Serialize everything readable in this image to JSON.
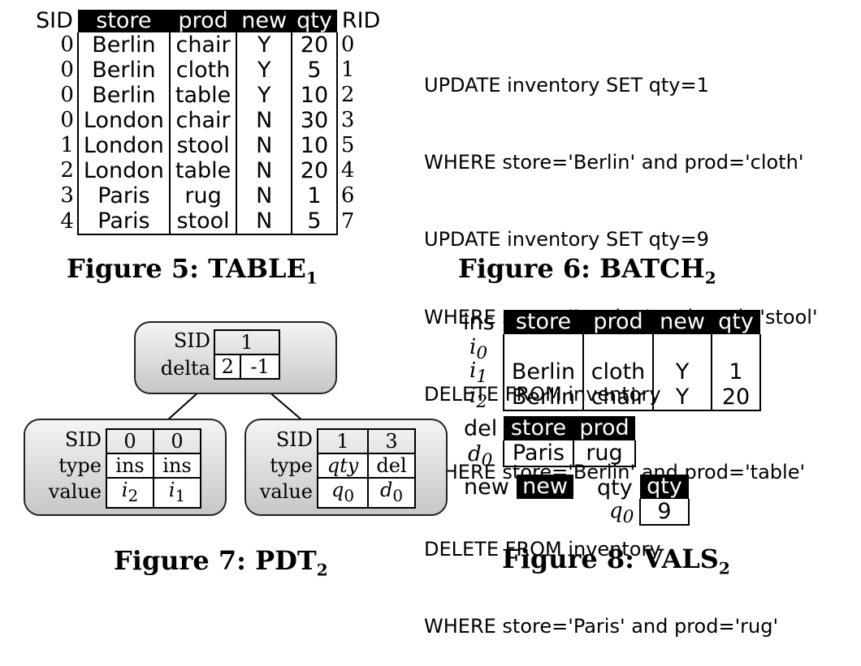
{
  "fig5": {
    "left_header": "SID",
    "right_header": "RID",
    "columns": [
      "store",
      "prod",
      "new",
      "qty"
    ],
    "rows": [
      {
        "sid": "0",
        "store": "Berlin",
        "prod": "chair",
        "new": "Y",
        "qty": "20",
        "rid": "0"
      },
      {
        "sid": "0",
        "store": "Berlin",
        "prod": "cloth",
        "new": "Y",
        "qty": "5",
        "rid": "1"
      },
      {
        "sid": "0",
        "store": "Berlin",
        "prod": "table",
        "new": "Y",
        "qty": "10",
        "rid": "2"
      },
      {
        "sid": "0",
        "store": "London",
        "prod": "chair",
        "new": "N",
        "qty": "30",
        "rid": "3"
      },
      {
        "sid": "1",
        "store": "London",
        "prod": "stool",
        "new": "N",
        "qty": "10",
        "rid": "5"
      },
      {
        "sid": "2",
        "store": "London",
        "prod": "table",
        "new": "N",
        "qty": "20",
        "rid": "4"
      },
      {
        "sid": "3",
        "store": "Paris",
        "prod": "rug",
        "new": "N",
        "qty": "1",
        "rid": "6"
      },
      {
        "sid": "4",
        "store": "Paris",
        "prod": "stool",
        "new": "N",
        "qty": "5",
        "rid": "7"
      }
    ],
    "caption": "Figure 5: TABLE",
    "caption_sub": "1"
  },
  "fig6": {
    "lines": [
      "UPDATE inventory SET qty=1",
      "WHERE store='Berlin' and prod='cloth'",
      "UPDATE inventory SET qty=9",
      "WHERE store='London' and prod='stool'",
      "DELETE FROM inventory",
      "WHERE store='Berlin' and prod='table'",
      "DELETE FROM inventory",
      "WHERE store='Paris' and prod='rug'"
    ],
    "caption": "Figure 6: BATCH",
    "caption_sub": "2"
  },
  "fig7": {
    "root": {
      "sid_label": "SID",
      "delta_label": "delta",
      "sid": "1",
      "delta": [
        "2",
        "-1"
      ]
    },
    "left": {
      "sid_label": "SID",
      "type_label": "type",
      "value_label": "value",
      "sid": [
        "0",
        "0"
      ],
      "type": [
        "ins",
        "ins"
      ],
      "value": [
        "i",
        "i"
      ],
      "value_sub": [
        "2",
        "1"
      ]
    },
    "right": {
      "sid_label": "SID",
      "type_label": "type",
      "value_label": "value",
      "sid": [
        "1",
        "3"
      ],
      "type": [
        "qty",
        "del"
      ],
      "value": [
        "q",
        "d"
      ],
      "value_sub": [
        "0",
        "0"
      ]
    },
    "caption": "Figure 7: PDT",
    "caption_sub": "2"
  },
  "fig8": {
    "ins": {
      "label": "ins",
      "columns": [
        "store",
        "prod",
        "new",
        "qty"
      ],
      "row_labels": [
        "i",
        "i",
        "i"
      ],
      "row_subs": [
        "0",
        "1",
        "2"
      ],
      "rows": [
        [
          "",
          "",
          "",
          ""
        ],
        [
          "Berlin",
          "cloth",
          "Y",
          "1"
        ],
        [
          "Berlin",
          "chair",
          "Y",
          "20"
        ]
      ]
    },
    "del": {
      "label": "del",
      "columns": [
        "store",
        "prod"
      ],
      "row_label": "d",
      "row_sub": "0",
      "row": [
        "Paris",
        "rug"
      ]
    },
    "new": {
      "label": "new",
      "column": "new"
    },
    "qty": {
      "label": "qty",
      "column": "qty",
      "row_label": "q",
      "row_sub": "0",
      "value": "9"
    },
    "caption": "Figure 8: VALS",
    "caption_sub": "2"
  }
}
